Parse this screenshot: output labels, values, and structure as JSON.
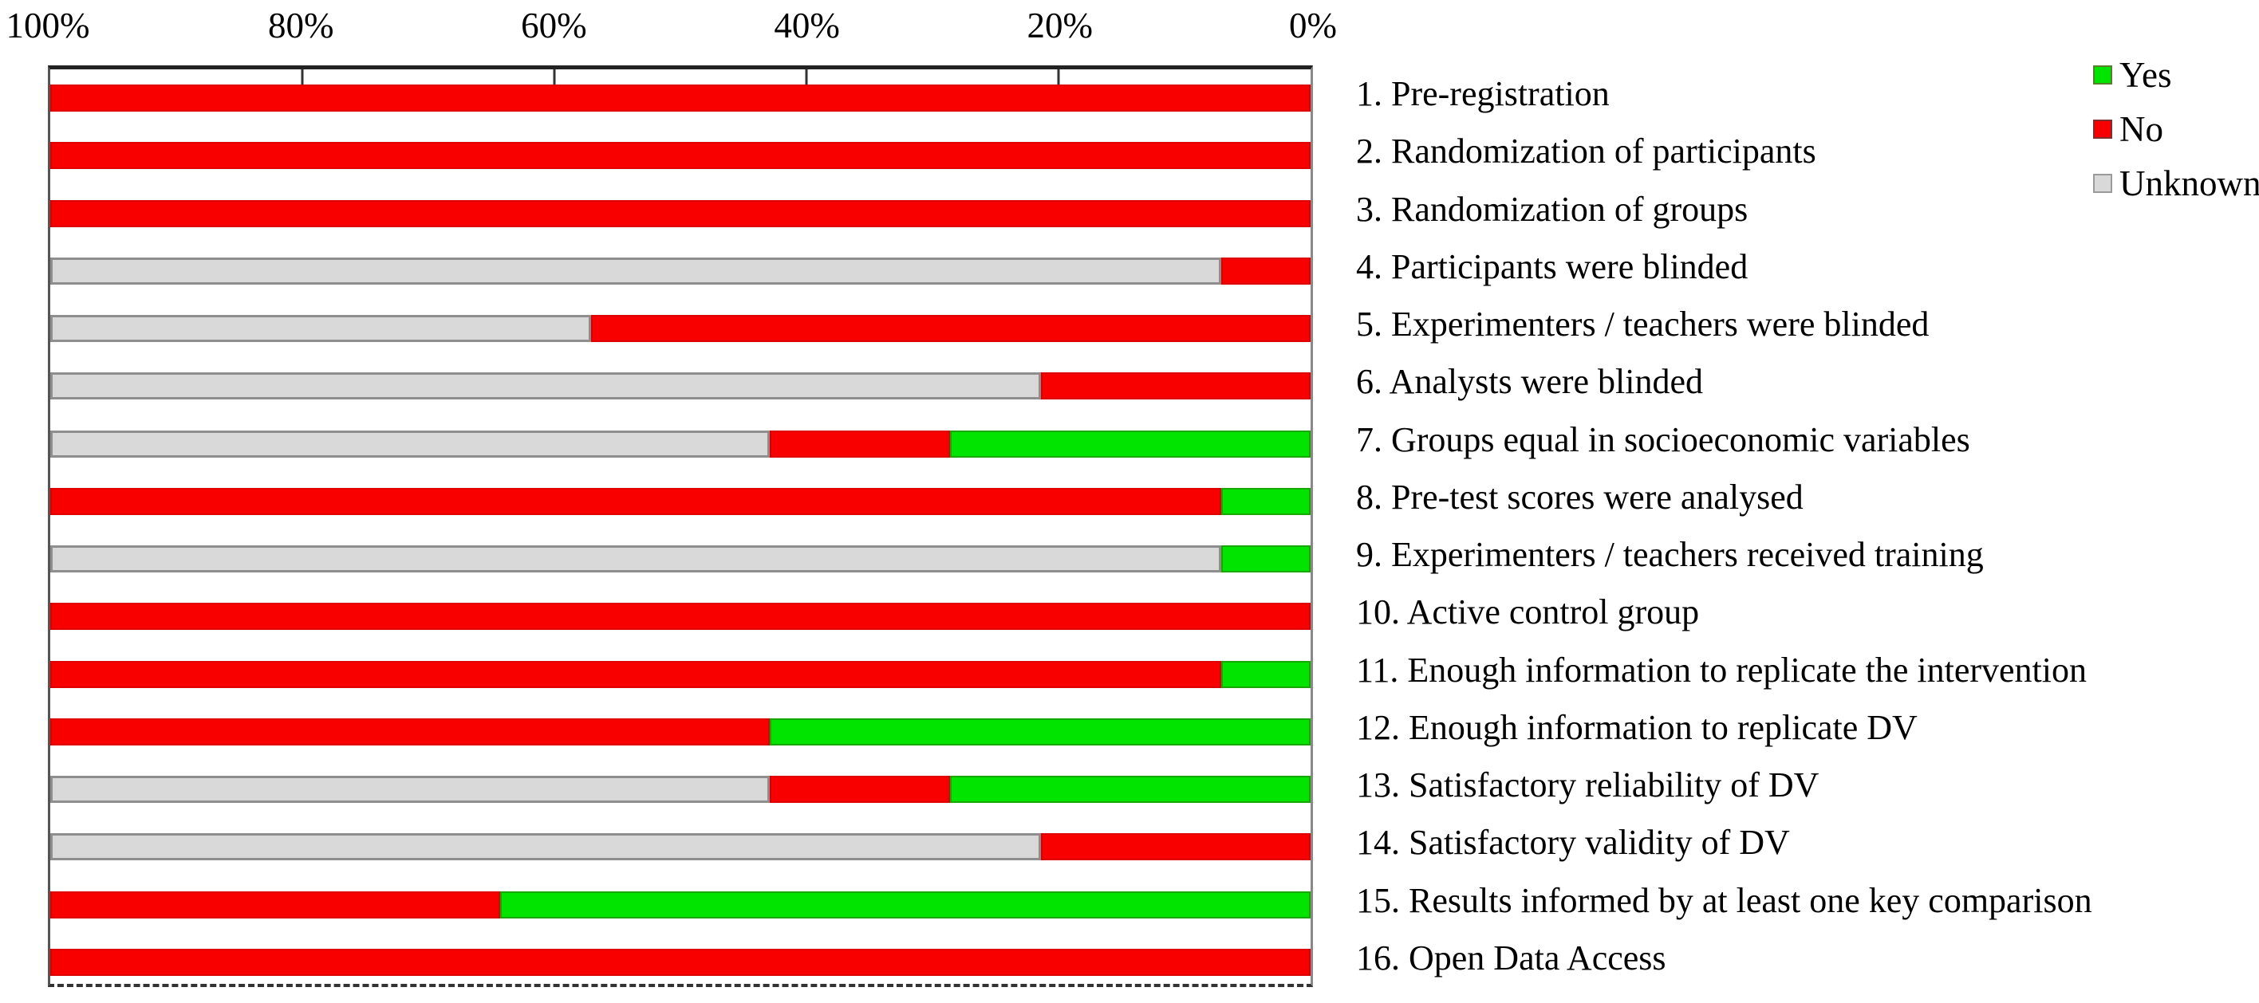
{
  "chart_data": {
    "type": "bar",
    "variant": "horizontal-stacked-100pct",
    "title": "",
    "axis": {
      "ticks": [
        "100%",
        "80%",
        "60%",
        "40%",
        "20%",
        "0%"
      ],
      "direction": "reversed-100-left-to-0-right",
      "xlim": [
        0,
        100
      ],
      "grid": false
    },
    "legend_position": "top-right",
    "legend": [
      {
        "key": "yes",
        "label": "Yes"
      },
      {
        "key": "no",
        "label": "No"
      },
      {
        "key": "unknown",
        "label": "Unknown"
      }
    ],
    "colors": {
      "yes": "#00e400",
      "no": "#f80000",
      "unknown": "#d9d9d9"
    },
    "items": [
      {
        "label": "1. Pre-registration",
        "segments": [
          {
            "key": "no",
            "value": 100
          }
        ]
      },
      {
        "label": "2. Randomization of participants",
        "segments": [
          {
            "key": "no",
            "value": 100
          }
        ]
      },
      {
        "label": "3. Randomization of groups",
        "segments": [
          {
            "key": "no",
            "value": 100
          }
        ]
      },
      {
        "label": "4. Participants were blinded",
        "segments": [
          {
            "key": "unknown",
            "value": 92.9
          },
          {
            "key": "no",
            "value": 7.1
          }
        ]
      },
      {
        "label": "5. Experimenters / teachers were blinded",
        "segments": [
          {
            "key": "unknown",
            "value": 42.9
          },
          {
            "key": "no",
            "value": 57.1
          }
        ]
      },
      {
        "label": "6. Analysts were blinded",
        "segments": [
          {
            "key": "unknown",
            "value": 78.6
          },
          {
            "key": "no",
            "value": 21.4
          }
        ]
      },
      {
        "label": "7. Groups equal in socioeconomic variables",
        "segments": [
          {
            "key": "unknown",
            "value": 57.1
          },
          {
            "key": "no",
            "value": 14.3
          },
          {
            "key": "yes",
            "value": 28.6
          }
        ]
      },
      {
        "label": "8. Pre-test scores were analysed",
        "segments": [
          {
            "key": "no",
            "value": 92.9
          },
          {
            "key": "yes",
            "value": 7.1
          }
        ]
      },
      {
        "label": "9. Experimenters / teachers received training",
        "segments": [
          {
            "key": "unknown",
            "value": 92.9
          },
          {
            "key": "yes",
            "value": 7.1
          }
        ]
      },
      {
        "label": "10. Active control group",
        "segments": [
          {
            "key": "no",
            "value": 100
          }
        ]
      },
      {
        "label": "11. Enough information to replicate the intervention",
        "segments": [
          {
            "key": "no",
            "value": 92.9
          },
          {
            "key": "yes",
            "value": 7.1
          }
        ]
      },
      {
        "label": "12. Enough information to replicate DV",
        "segments": [
          {
            "key": "no",
            "value": 57.1
          },
          {
            "key": "yes",
            "value": 42.9
          }
        ]
      },
      {
        "label": "13. Satisfactory reliability of DV",
        "segments": [
          {
            "key": "unknown",
            "value": 57.1
          },
          {
            "key": "no",
            "value": 14.3
          },
          {
            "key": "yes",
            "value": 28.6
          }
        ]
      },
      {
        "label": "14. Satisfactory validity of DV",
        "segments": [
          {
            "key": "unknown",
            "value": 78.6
          },
          {
            "key": "no",
            "value": 21.4
          }
        ]
      },
      {
        "label": "15. Results informed by at least one key comparison",
        "segments": [
          {
            "key": "no",
            "value": 35.7
          },
          {
            "key": "yes",
            "value": 64.3
          }
        ]
      },
      {
        "label": "16. Open Data Access",
        "segments": [
          {
            "key": "no",
            "value": 100
          }
        ]
      }
    ]
  }
}
